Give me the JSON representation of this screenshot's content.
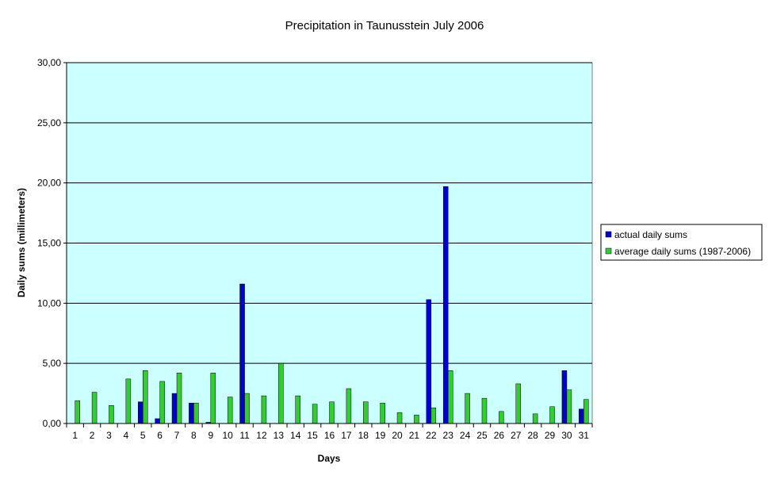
{
  "chart_data": {
    "type": "bar",
    "title": "Precipitation in Taunusstein  July  2006",
    "xlabel": "Days",
    "ylabel": "Daily sums  (millimeters)",
    "ylim": [
      0,
      30
    ],
    "yticks": [
      "0,00",
      "5,00",
      "10,00",
      "15,00",
      "20,00",
      "25,00",
      "30,00"
    ],
    "grid": true,
    "legend_position": "right",
    "categories": [
      "1",
      "2",
      "3",
      "4",
      "5",
      "6",
      "7",
      "8",
      "9",
      "10",
      "11",
      "12",
      "13",
      "14",
      "15",
      "16",
      "17",
      "18",
      "19",
      "20",
      "21",
      "22",
      "23",
      "24",
      "25",
      "26",
      "27",
      "28",
      "29",
      "30",
      "31"
    ],
    "series": [
      {
        "name": "actual daily sums",
        "color": "#0000cc",
        "values": [
          0,
          0,
          0,
          0,
          1.8,
          0.4,
          2.5,
          1.7,
          0.1,
          0,
          11.6,
          0,
          0,
          0,
          0,
          0,
          0,
          0,
          0,
          0,
          0,
          10.3,
          19.7,
          0,
          0,
          0,
          0,
          0,
          0,
          4.4,
          1.2
        ]
      },
      {
        "name": "average daily sums (1987-2006)",
        "color": "#33cc33",
        "values": [
          1.9,
          2.6,
          1.5,
          3.7,
          4.4,
          3.5,
          4.2,
          1.7,
          4.2,
          2.2,
          2.5,
          2.3,
          5.0,
          2.3,
          1.6,
          1.8,
          2.9,
          1.8,
          1.7,
          0.9,
          0.7,
          1.3,
          4.4,
          2.5,
          2.1,
          1.0,
          3.3,
          0.8,
          1.4,
          2.8,
          2.0
        ]
      }
    ]
  },
  "colors": {
    "plot_background": "#ccffff",
    "gridline": "#000000"
  }
}
